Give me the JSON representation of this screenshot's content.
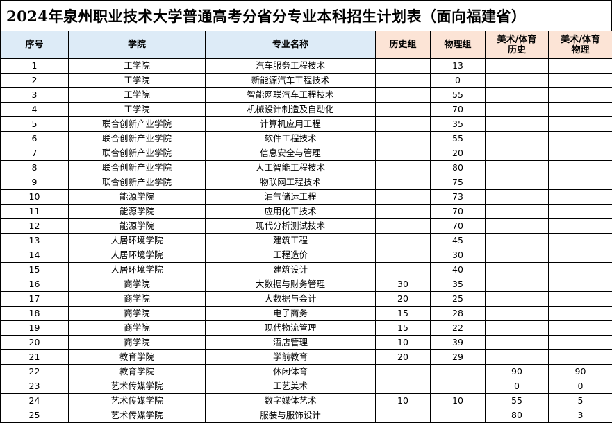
{
  "title": "2024年泉州职业技术大学普通高考分省分专业本科招生计划表（面向福建省）",
  "colors": {
    "header_blue": "#DDEBF7",
    "header_peach": "#FCE4D6"
  },
  "headers": [
    "序号",
    "学院",
    "专业名称",
    "历史组",
    "物理组",
    "美术/体育\n历史",
    "美术/体育\n物理"
  ],
  "rows": [
    [
      "1",
      "工学院",
      "汽车服务工程技术",
      "",
      "13",
      "",
      ""
    ],
    [
      "2",
      "工学院",
      "新能源汽车工程技术",
      "",
      "0",
      "",
      ""
    ],
    [
      "3",
      "工学院",
      "智能网联汽车工程技术",
      "",
      "55",
      "",
      ""
    ],
    [
      "4",
      "工学院",
      "机械设计制造及自动化",
      "",
      "70",
      "",
      ""
    ],
    [
      "5",
      "联合创新产业学院",
      "计算机应用工程",
      "",
      "35",
      "",
      ""
    ],
    [
      "6",
      "联合创新产业学院",
      "软件工程技术",
      "",
      "55",
      "",
      ""
    ],
    [
      "7",
      "联合创新产业学院",
      "信息安全与管理",
      "",
      "20",
      "",
      ""
    ],
    [
      "8",
      "联合创新产业学院",
      "人工智能工程技术",
      "",
      "80",
      "",
      ""
    ],
    [
      "9",
      "联合创新产业学院",
      "物联网工程技术",
      "",
      "75",
      "",
      ""
    ],
    [
      "10",
      "能源学院",
      "油气储运工程",
      "",
      "73",
      "",
      ""
    ],
    [
      "11",
      "能源学院",
      "应用化工技术",
      "",
      "70",
      "",
      ""
    ],
    [
      "12",
      "能源学院",
      "现代分析测试技术",
      "",
      "70",
      "",
      ""
    ],
    [
      "13",
      "人居环境学院",
      "建筑工程",
      "",
      "45",
      "",
      ""
    ],
    [
      "14",
      "人居环境学院",
      "工程造价",
      "",
      "30",
      "",
      ""
    ],
    [
      "15",
      "人居环境学院",
      "建筑设计",
      "",
      "40",
      "",
      ""
    ],
    [
      "16",
      "商学院",
      "大数据与财务管理",
      "30",
      "35",
      "",
      ""
    ],
    [
      "17",
      "商学院",
      "大数据与会计",
      "20",
      "25",
      "",
      ""
    ],
    [
      "18",
      "商学院",
      "电子商务",
      "15",
      "28",
      "",
      ""
    ],
    [
      "19",
      "商学院",
      "现代物流管理",
      "15",
      "22",
      "",
      ""
    ],
    [
      "20",
      "商学院",
      "酒店管理",
      "10",
      "39",
      "",
      ""
    ],
    [
      "21",
      "教育学院",
      "学前教育",
      "20",
      "29",
      "",
      ""
    ],
    [
      "22",
      "教育学院",
      "休闲体育",
      "",
      "",
      "90",
      "90"
    ],
    [
      "23",
      "艺术传媒学院",
      "工艺美术",
      "",
      "",
      "0",
      "0"
    ],
    [
      "24",
      "艺术传媒学院",
      "数字媒体艺术",
      "10",
      "10",
      "55",
      "5"
    ],
    [
      "25",
      "艺术传媒学院",
      "服装与服饰设计",
      "",
      "",
      "80",
      "3"
    ]
  ]
}
